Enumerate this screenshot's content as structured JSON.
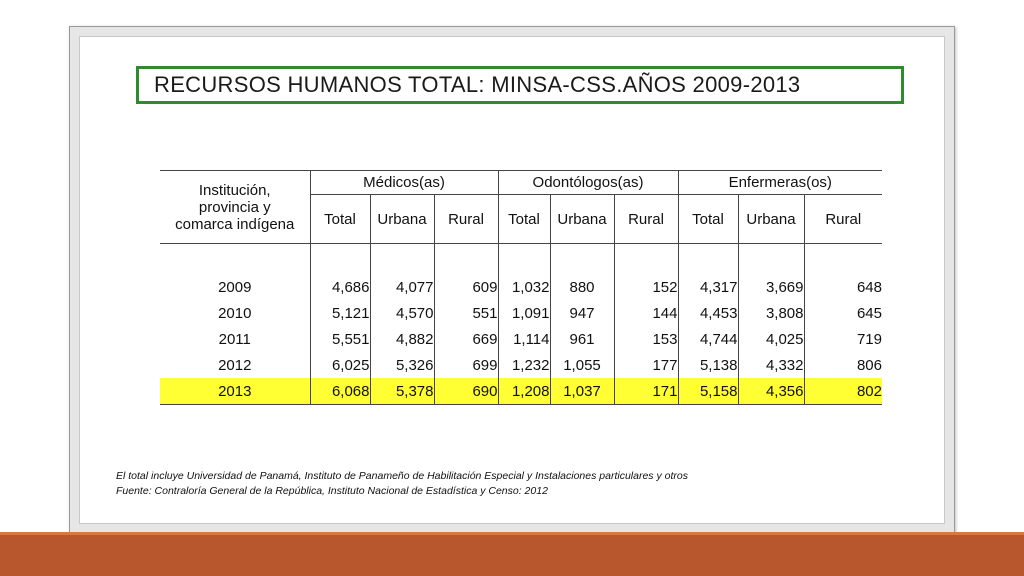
{
  "title": "RECURSOS HUMANOS TOTAL: MINSA-CSS.AÑOS 2009-2013",
  "table": {
    "first_col_header": [
      "Institución,",
      "provincia y",
      "comarca indígena"
    ],
    "groups": [
      "Médicos(as)",
      "Odontólogos(as)",
      "Enfermeras(os)"
    ],
    "subheaders": [
      "Total",
      "Urbana",
      "Rural"
    ],
    "rows": [
      {
        "year": "2009",
        "values": [
          "4,686",
          "4,077",
          "609",
          "1,032",
          "880",
          "152",
          "4,317",
          "3,669",
          "648"
        ]
      },
      {
        "year": "2010",
        "values": [
          "5,121",
          "4,570",
          "551",
          "1,091",
          "947",
          "144",
          "4,453",
          "3,808",
          "645"
        ]
      },
      {
        "year": "2011",
        "values": [
          "5,551",
          "4,882",
          "669",
          "1,114",
          "961",
          "153",
          "4,744",
          "4,025",
          "719"
        ]
      },
      {
        "year": "2012",
        "values": [
          "6,025",
          "5,326",
          "699",
          "1,232",
          "1,055",
          "177",
          "5,138",
          "4,332",
          "806"
        ]
      },
      {
        "year": "2013",
        "values": [
          "6,068",
          "5,378",
          "690",
          "1,208",
          "1,037",
          "171",
          "5,158",
          "4,356",
          "802"
        ]
      }
    ],
    "highlight_color": "#ffff33"
  },
  "notes": [
    "El total incluye Universidad de Panamá, Instituto de Panameño de Habilitación Especial y Instalaciones particulares y otros",
    "Fuente: Contraloría General de la República, Instituto Nacional de Estadística y Censo: 2012"
  ],
  "colors": {
    "title_border": "#2e8b2e",
    "bottom_bar": "#b8562e"
  }
}
